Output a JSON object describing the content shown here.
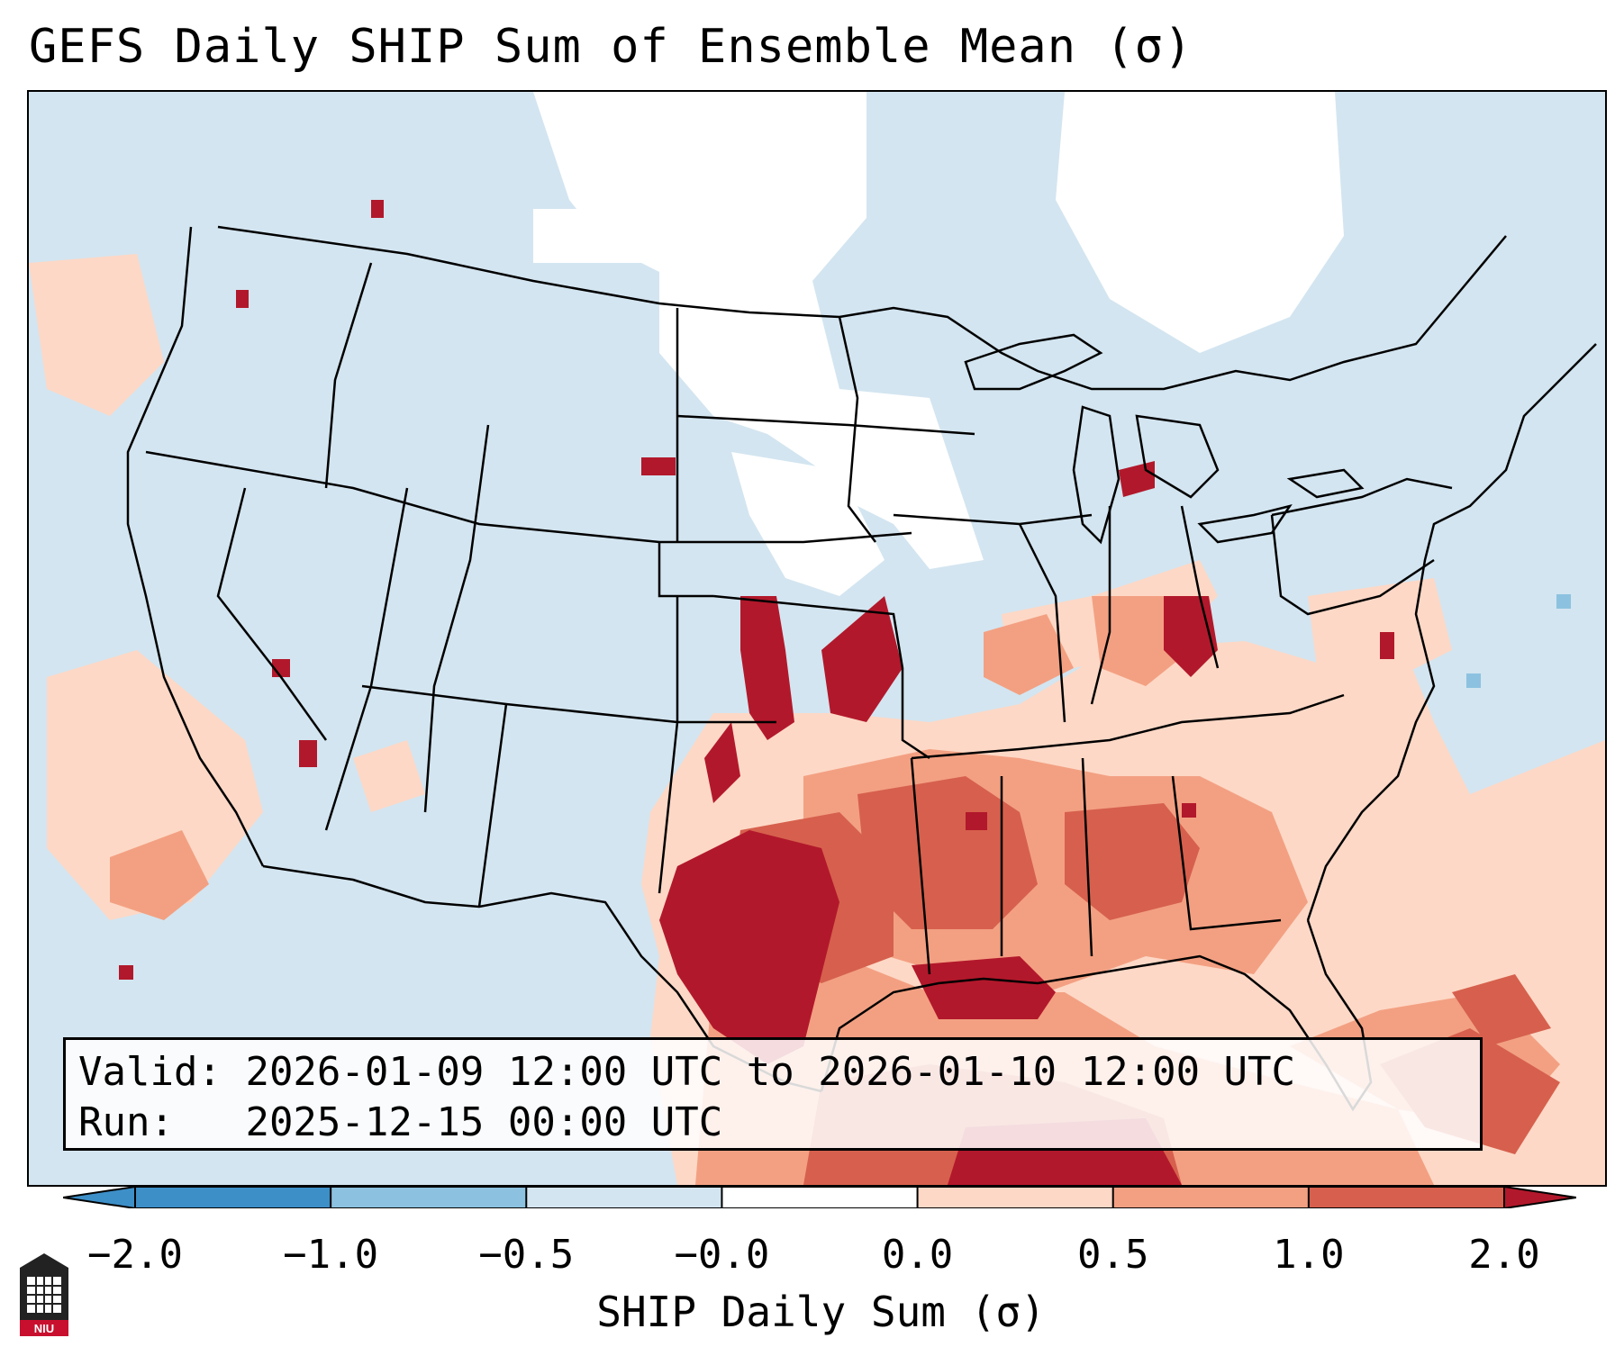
{
  "title": "GEFS Daily SHIP Sum of Ensemble Mean (σ)",
  "legend": {
    "valid_label": "Valid:",
    "valid_value": "2026-01-09 12:00 UTC to 2026-01-10 12:00 UTC",
    "run_label": "Run:",
    "run_value": "2025-12-15 00:00 UTC"
  },
  "colorbar": {
    "label": "SHIP Daily Sum (σ)",
    "ticks": [
      "−2.0",
      "−1.0",
      "−0.5",
      "−0.0",
      "0.0",
      "0.5",
      "1.0",
      "2.0"
    ],
    "colors": [
      "#3d8fc8",
      "#8cc2e0",
      "#d3e5f0",
      "#ffffff",
      "#fdd8c6",
      "#f3a082",
      "#d6604d",
      "#b2182b"
    ],
    "extend": "both"
  },
  "map": {
    "region": "Contiguous United States",
    "palette": {
      "ocean_base": "#d3e5f0",
      "near_zero": "#ffffff",
      "weak_pos": "#fdd8c6",
      "moderate_pos": "#f3a082",
      "strong_pos": "#d6604d",
      "very_strong_pos": "#b2182b",
      "weak_neg": "#8cc2e0"
    }
  },
  "logo": {
    "text": "NIU",
    "icon": "niu-logo-icon"
  }
}
